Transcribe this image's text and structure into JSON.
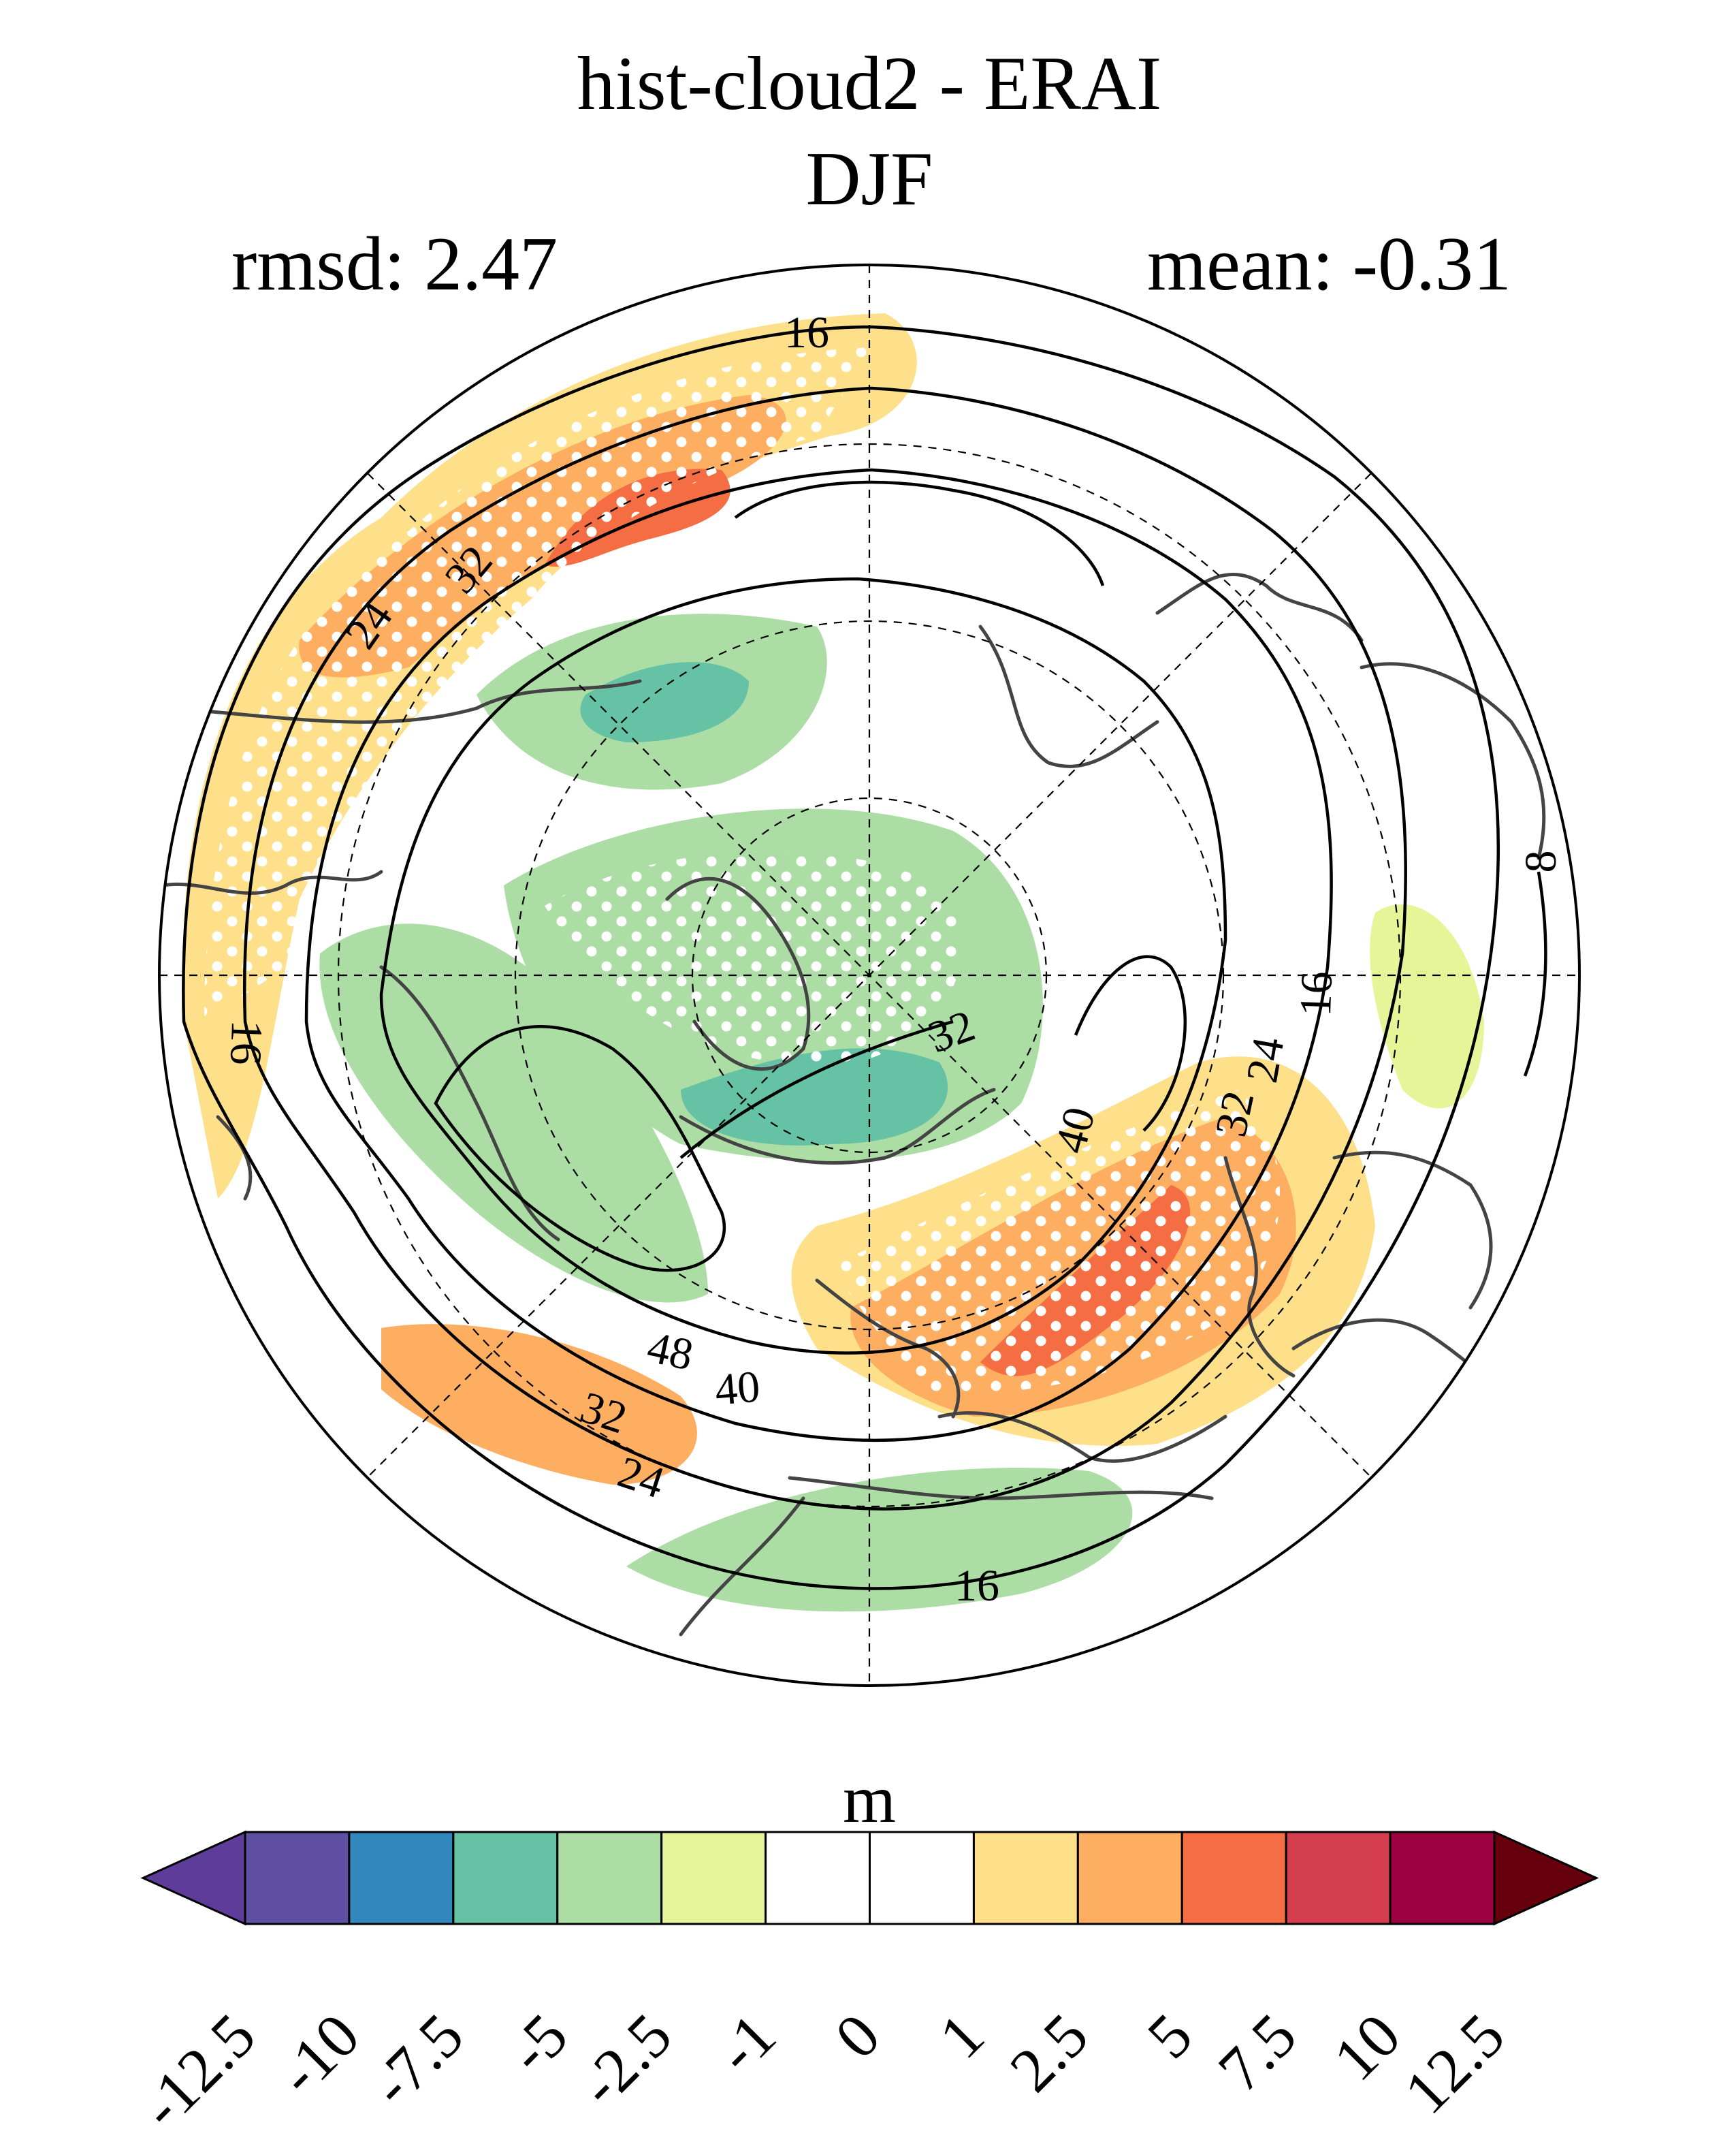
{
  "title": {
    "line1": "hist-cloud2 - ERAI",
    "line2": "DJF"
  },
  "stats": {
    "rmsd": "rmsd: 2.47",
    "mean": "mean: -0.31"
  },
  "map": {
    "projection": "north polar stereographic",
    "contour_labels": [
      "16",
      "16",
      "16",
      "16",
      "24",
      "24",
      "24",
      "32",
      "32",
      "32",
      "32",
      "40",
      "40",
      "48",
      "8"
    ]
  },
  "colorbar": {
    "unit": "m",
    "ticks": [
      "-12.5",
      "-10",
      "-7.5",
      "-5",
      "-2.5",
      "-1",
      "0",
      "1",
      "2.5",
      "5",
      "7.5",
      "10",
      "12.5"
    ],
    "colors": [
      "#5e3c99",
      "#5e4fa2",
      "#3288bd",
      "#66c2a5",
      "#abdda4",
      "#e6f598",
      "#ffffff",
      "#ffffff",
      "#fee08b",
      "#fdae61",
      "#f46d43",
      "#d53e4f",
      "#9e0142",
      "#67000d"
    ]
  }
}
